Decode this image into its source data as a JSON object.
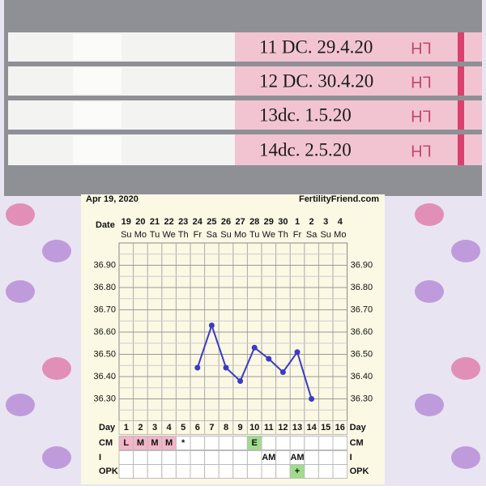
{
  "photo": {
    "labels": [
      "11 DC. 29.4.20",
      "12 DC. 30.4.20",
      "13dc. 1.5.20",
      "14dc. 2.5.20"
    ],
    "strip_text": "LH"
  },
  "chart_data": {
    "type": "line",
    "header_left": "Apr 19, 2020",
    "header_right": "FertilityFriend.com",
    "date_label": "Date",
    "dates": [
      19,
      20,
      21,
      22,
      23,
      24,
      25,
      26,
      27,
      28,
      29,
      30,
      1,
      2,
      3,
      4
    ],
    "weekdays": [
      "Su",
      "Mo",
      "Tu",
      "We",
      "Th",
      "Fr",
      "Sa",
      "Su",
      "Mo",
      "Tu",
      "We",
      "Th",
      "Fr",
      "Sa",
      "Su",
      "Mo"
    ],
    "day_label": "Day",
    "categories": [
      1,
      2,
      3,
      4,
      5,
      6,
      7,
      8,
      9,
      10,
      11,
      12,
      13,
      14,
      15,
      16
    ],
    "series": [
      {
        "color": "#3b3bc4",
        "values": [
          null,
          null,
          null,
          null,
          null,
          36.44,
          36.63,
          36.44,
          36.38,
          36.53,
          36.48,
          36.42,
          36.51,
          36.3,
          null,
          null
        ]
      }
    ],
    "ylim": [
      36.2,
      37.0
    ],
    "yticks": [
      {
        "value": 36.3,
        "label": "36.30"
      },
      {
        "value": 36.4,
        "label": "36.40"
      },
      {
        "value": 36.5,
        "label": "36.50"
      },
      {
        "value": 36.6,
        "label": "36.60"
      },
      {
        "value": 36.7,
        "label": "36.70"
      },
      {
        "value": 36.8,
        "label": "36.80"
      },
      {
        "value": 36.9,
        "label": "36.90"
      }
    ],
    "grid": true,
    "rows": [
      {
        "label": "CM",
        "values": [
          "L",
          "M",
          "M",
          "M",
          "*",
          null,
          null,
          null,
          null,
          "E",
          null,
          null,
          null,
          null,
          null,
          null
        ],
        "colors": [
          "#f2b6c6",
          "#f2b6c6",
          "#f2b6c6",
          "#f2b6c6",
          null,
          null,
          null,
          null,
          null,
          "#9fdc8c",
          null,
          null,
          null,
          null,
          null,
          null
        ]
      },
      {
        "label": "I",
        "values": [
          null,
          null,
          null,
          null,
          null,
          null,
          null,
          null,
          null,
          null,
          "AM",
          null,
          "AM",
          null,
          null,
          null
        ],
        "colors": [
          null,
          null,
          null,
          null,
          null,
          null,
          null,
          null,
          null,
          null,
          null,
          null,
          null,
          null,
          null,
          null
        ]
      },
      {
        "label": "OPK",
        "values": [
          null,
          null,
          null,
          null,
          null,
          null,
          null,
          null,
          null,
          null,
          null,
          null,
          "+",
          null,
          null,
          null
        ],
        "colors": [
          null,
          null,
          null,
          null,
          null,
          null,
          null,
          null,
          null,
          null,
          null,
          null,
          "#9fdc8c",
          null,
          null,
          null
        ]
      }
    ]
  }
}
